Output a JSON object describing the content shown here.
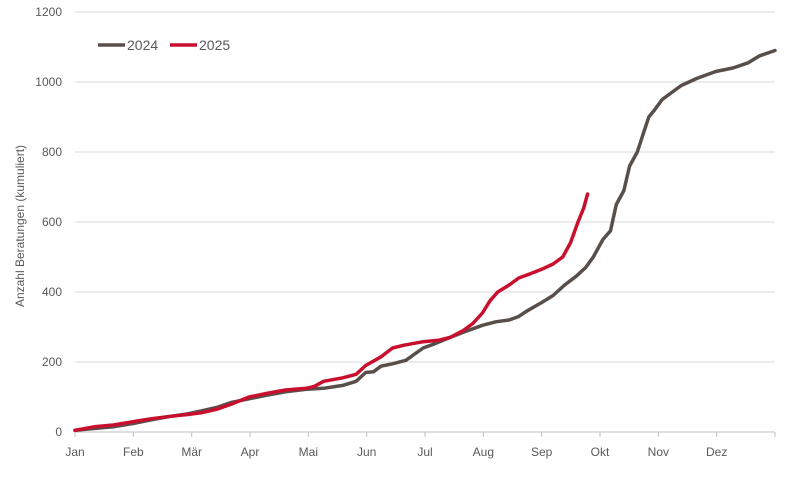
{
  "chart_data": {
    "type": "line",
    "ylabel": "Anzahl Beratungen (kumuliert)",
    "ylim": [
      0,
      1200
    ],
    "yticks": [
      0,
      200,
      400,
      600,
      800,
      1000,
      1200
    ],
    "months": [
      "Jan",
      "Feb",
      "Mär",
      "Apr",
      "Mai",
      "Jun",
      "Jul",
      "Aug",
      "Sep",
      "Okt",
      "Nov",
      "Dez"
    ],
    "x_unit": "day of year",
    "xlim": [
      0,
      366
    ],
    "grid": "horizontal",
    "legend_position": "top-left",
    "series": [
      {
        "name": "2024",
        "color": "#584E4A",
        "points": [
          [
            0,
            5
          ],
          [
            10,
            10
          ],
          [
            20,
            15
          ],
          [
            31,
            25
          ],
          [
            40,
            35
          ],
          [
            50,
            45
          ],
          [
            59,
            52
          ],
          [
            66,
            60
          ],
          [
            74,
            70
          ],
          [
            82,
            85
          ],
          [
            91,
            95
          ],
          [
            100,
            105
          ],
          [
            110,
            115
          ],
          [
            121,
            122
          ],
          [
            130,
            125
          ],
          [
            140,
            133
          ],
          [
            147,
            145
          ],
          [
            152,
            170
          ],
          [
            156,
            172
          ],
          [
            160,
            188
          ],
          [
            166,
            195
          ],
          [
            173,
            205
          ],
          [
            182,
            240
          ],
          [
            188,
            252
          ],
          [
            196,
            270
          ],
          [
            203,
            285
          ],
          [
            213,
            305
          ],
          [
            220,
            315
          ],
          [
            227,
            320
          ],
          [
            232,
            330
          ],
          [
            236,
            345
          ],
          [
            244,
            370
          ],
          [
            250,
            390
          ],
          [
            256,
            420
          ],
          [
            262,
            445
          ],
          [
            267,
            470
          ],
          [
            271,
            500
          ],
          [
            276,
            550
          ],
          [
            280,
            575
          ],
          [
            283,
            650
          ],
          [
            287,
            690
          ],
          [
            290,
            760
          ],
          [
            294,
            800
          ],
          [
            297,
            850
          ],
          [
            300,
            900
          ],
          [
            303,
            920
          ],
          [
            307,
            950
          ],
          [
            312,
            970
          ],
          [
            317,
            990
          ],
          [
            325,
            1010
          ],
          [
            335,
            1030
          ],
          [
            344,
            1040
          ],
          [
            352,
            1055
          ],
          [
            358,
            1075
          ],
          [
            366,
            1090
          ]
        ]
      },
      {
        "name": "2025",
        "color": "#C8102E",
        "points": [
          [
            0,
            5
          ],
          [
            10,
            15
          ],
          [
            20,
            20
          ],
          [
            31,
            30
          ],
          [
            40,
            38
          ],
          [
            50,
            45
          ],
          [
            59,
            50
          ],
          [
            66,
            55
          ],
          [
            74,
            65
          ],
          [
            82,
            80
          ],
          [
            91,
            100
          ],
          [
            100,
            110
          ],
          [
            110,
            120
          ],
          [
            121,
            125
          ],
          [
            125,
            130
          ],
          [
            130,
            145
          ],
          [
            140,
            155
          ],
          [
            147,
            165
          ],
          [
            152,
            190
          ],
          [
            160,
            215
          ],
          [
            166,
            240
          ],
          [
            172,
            248
          ],
          [
            182,
            258
          ],
          [
            190,
            262
          ],
          [
            196,
            270
          ],
          [
            203,
            290
          ],
          [
            208,
            310
          ],
          [
            213,
            340
          ],
          [
            217,
            375
          ],
          [
            221,
            400
          ],
          [
            227,
            420
          ],
          [
            232,
            440
          ],
          [
            238,
            452
          ],
          [
            244,
            465
          ],
          [
            250,
            480
          ],
          [
            255,
            500
          ],
          [
            259,
            540
          ],
          [
            263,
            600
          ],
          [
            266,
            640
          ],
          [
            268,
            680
          ]
        ]
      }
    ]
  }
}
